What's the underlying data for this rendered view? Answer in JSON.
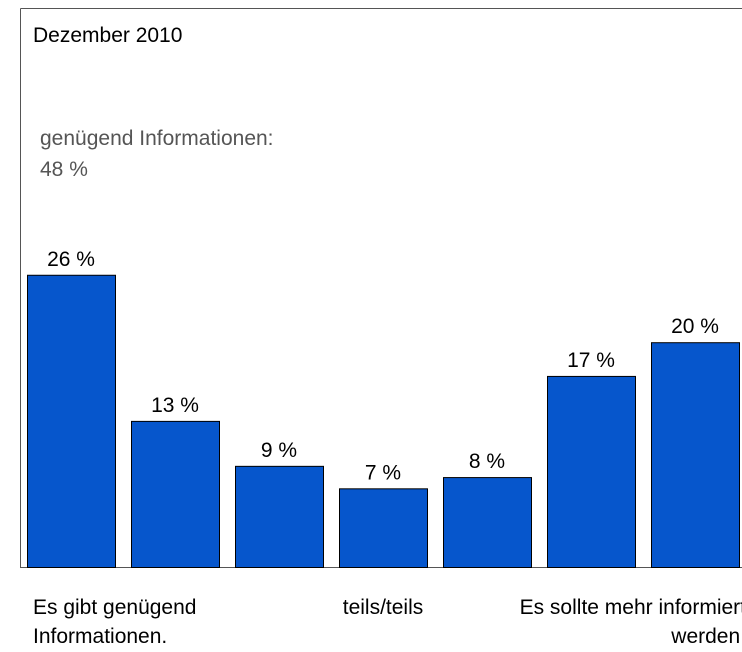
{
  "chart_data": {
    "type": "bar",
    "title": "Dezember 2010",
    "annotation": [
      "genügend Informationen:",
      "48 %"
    ],
    "categories": [
      "Es gibt genügend Informationen.",
      null,
      null,
      "teils/teils",
      null,
      null,
      "Es sollte mehr informiert werden."
    ],
    "values": [
      26,
      13,
      9,
      7,
      8,
      17,
      20
    ],
    "value_labels": [
      "26 %",
      "13 %",
      "9 %",
      "7 %",
      "8 %",
      "17 %",
      "20 %"
    ],
    "color": "#0656cc"
  }
}
